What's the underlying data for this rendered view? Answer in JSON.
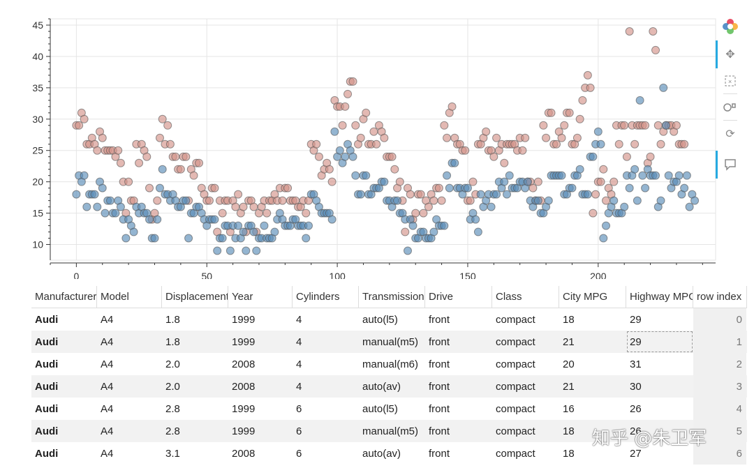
{
  "chart_data": {
    "type": "scatter",
    "title": "",
    "xlabel": "",
    "ylabel": "",
    "xlim": [
      -10,
      245
    ],
    "ylim": [
      7.5,
      46
    ],
    "x_ticks": [
      0,
      50,
      100,
      150,
      200
    ],
    "y_ticks": [
      10,
      15,
      20,
      25,
      30,
      35,
      40,
      45
    ],
    "series": [
      {
        "name": "City MPG",
        "color": "#5b8db8",
        "values": [
          18,
          21,
          20,
          21,
          16,
          18,
          18,
          18,
          16,
          20,
          19,
          15,
          17,
          17,
          15,
          15,
          17,
          16,
          14,
          11,
          14,
          13,
          12,
          16,
          15,
          16,
          15,
          15,
          14,
          11,
          11,
          14,
          19,
          22,
          18,
          18,
          17,
          18,
          17,
          16,
          16,
          17,
          17,
          11,
          15,
          15,
          16,
          16,
          15,
          14,
          13,
          14,
          14,
          14,
          9,
          11,
          11,
          13,
          13,
          9,
          13,
          11,
          13,
          11,
          12,
          9,
          13,
          13,
          12,
          9,
          11,
          11,
          13,
          11,
          11,
          11,
          12,
          14,
          15,
          14,
          13,
          13,
          13,
          14,
          14,
          13,
          13,
          13,
          11,
          13,
          18,
          18,
          17,
          16,
          15,
          15,
          15,
          15,
          14,
          28,
          24,
          25,
          23,
          24,
          26,
          25,
          24,
          21,
          18,
          18,
          21,
          21,
          18,
          18,
          19,
          19,
          19,
          20,
          20,
          17,
          17,
          16,
          17,
          17,
          15,
          15,
          14,
          9,
          14,
          13,
          11,
          11,
          12,
          12,
          11,
          11,
          11,
          12,
          14,
          13,
          13,
          13,
          21,
          19,
          23,
          23,
          19,
          19,
          18,
          19,
          19,
          14,
          15,
          14,
          12,
          18,
          16,
          17,
          18,
          16,
          18,
          18,
          20,
          19,
          20,
          18,
          21,
          19,
          19,
          19,
          20,
          20,
          19,
          20,
          17,
          16,
          17,
          17,
          15,
          15,
          16,
          17,
          21,
          21,
          21,
          21,
          21,
          18,
          18,
          19,
          19,
          21,
          21,
          22,
          18,
          18,
          18,
          24,
          24,
          26,
          28,
          26,
          11,
          13,
          15,
          16,
          17,
          15,
          15,
          15,
          16,
          21,
          19,
          21,
          22,
          17,
          33,
          21,
          19,
          22,
          21,
          21,
          21,
          16,
          17,
          35,
          29,
          21,
          19,
          20,
          20,
          21,
          18,
          19,
          21,
          16,
          18,
          17
        ],
        "x_start": 0
      },
      {
        "name": "Highway MPG",
        "color": "#d4948a",
        "values": [
          29,
          29,
          31,
          30,
          26,
          26,
          27,
          26,
          25,
          28,
          27,
          25,
          25,
          25,
          25,
          24,
          25,
          23,
          20,
          15,
          20,
          17,
          17,
          26,
          23,
          26,
          25,
          24,
          19,
          14,
          15,
          17,
          27,
          30,
          26,
          29,
          26,
          24,
          24,
          22,
          22,
          24,
          24,
          17,
          22,
          21,
          23,
          23,
          19,
          18,
          17,
          17,
          19,
          19,
          12,
          17,
          15,
          17,
          17,
          12,
          17,
          16,
          18,
          15,
          16,
          12,
          17,
          17,
          16,
          12,
          15,
          16,
          17,
          15,
          17,
          17,
          18,
          17,
          19,
          17,
          19,
          19,
          17,
          17,
          17,
          16,
          16,
          17,
          15,
          17,
          26,
          25,
          26,
          24,
          21,
          22,
          23,
          22,
          20,
          33,
          32,
          32,
          29,
          32,
          34,
          36,
          36,
          29,
          26,
          27,
          30,
          31,
          26,
          26,
          28,
          26,
          29,
          28,
          27,
          24,
          24,
          24,
          22,
          19,
          20,
          17,
          12,
          19,
          18,
          14,
          15,
          18,
          18,
          15,
          17,
          16,
          18,
          17,
          19,
          19,
          17,
          29,
          27,
          31,
          32,
          27,
          26,
          26,
          25,
          25,
          17,
          17,
          20,
          18,
          26,
          26,
          27,
          28,
          25,
          25,
          24,
          27,
          25,
          26,
          23,
          26,
          26,
          26,
          26,
          25,
          27,
          25,
          27,
          20,
          20,
          19,
          17,
          20,
          17,
          29,
          27,
          31,
          31,
          26,
          26,
          28,
          27,
          29,
          31,
          31,
          26,
          26,
          27,
          30,
          33,
          35,
          37,
          35,
          15,
          18,
          20,
          20,
          22,
          17,
          19,
          18,
          20,
          29,
          26,
          29,
          29,
          24,
          44,
          29,
          26,
          29,
          29,
          29,
          29,
          23,
          24,
          44,
          41,
          29,
          26,
          28,
          29,
          29,
          29,
          28,
          29,
          26,
          26,
          26
        ],
        "x_start": 0
      }
    ]
  },
  "table": {
    "columns": [
      "Manufacturer",
      "Model",
      "Displacement",
      "Year",
      "Cylinders",
      "Transmission",
      "Drive",
      "Class",
      "City MPG",
      "Highway MPG",
      "row index"
    ],
    "rows": [
      {
        "manufacturer": "Audi",
        "model": "A4",
        "displ": "1.8",
        "year": "1999",
        "cyl": "4",
        "trans": "auto(l5)",
        "drive": "front",
        "cls": "compact",
        "cty": "18",
        "hwy": "29",
        "idx": "0"
      },
      {
        "manufacturer": "Audi",
        "model": "A4",
        "displ": "1.8",
        "year": "1999",
        "cyl": "4",
        "trans": "manual(m5)",
        "drive": "front",
        "cls": "compact",
        "cty": "21",
        "hwy": "29",
        "idx": "1"
      },
      {
        "manufacturer": "Audi",
        "model": "A4",
        "displ": "2.0",
        "year": "2008",
        "cyl": "4",
        "trans": "manual(m6)",
        "drive": "front",
        "cls": "compact",
        "cty": "20",
        "hwy": "31",
        "idx": "2"
      },
      {
        "manufacturer": "Audi",
        "model": "A4",
        "displ": "2.0",
        "year": "2008",
        "cyl": "4",
        "trans": "auto(av)",
        "drive": "front",
        "cls": "compact",
        "cty": "21",
        "hwy": "30",
        "idx": "3"
      },
      {
        "manufacturer": "Audi",
        "model": "A4",
        "displ": "2.8",
        "year": "1999",
        "cyl": "6",
        "trans": "auto(l5)",
        "drive": "front",
        "cls": "compact",
        "cty": "16",
        "hwy": "26",
        "idx": "4"
      },
      {
        "manufacturer": "Audi",
        "model": "A4",
        "displ": "2.8",
        "year": "1999",
        "cyl": "6",
        "trans": "manual(m5)",
        "drive": "front",
        "cls": "compact",
        "cty": "18",
        "hwy": "26",
        "idx": "5"
      },
      {
        "manufacturer": "Audi",
        "model": "A4",
        "displ": "3.1",
        "year": "2008",
        "cyl": "6",
        "trans": "auto(av)",
        "drive": "front",
        "cls": "compact",
        "cty": "18",
        "hwy": "27",
        "idx": "6"
      }
    ]
  },
  "toolbar": {
    "tools": [
      "bokeh-logo-icon",
      "pan-icon",
      "box-zoom-icon",
      "wheel-zoom-icon",
      "reset-icon",
      "hover-icon"
    ]
  },
  "watermark": "知乎 @朱卫军"
}
